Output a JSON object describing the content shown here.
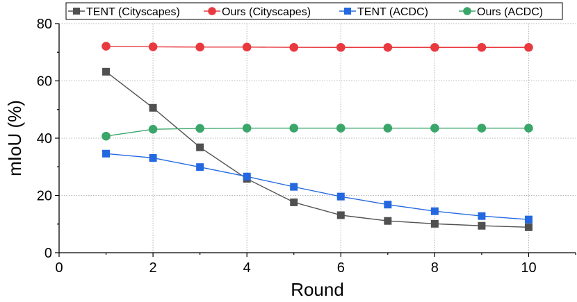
{
  "chart_data": {
    "type": "line",
    "xlabel": "Round",
    "ylabel": "mIoU (%)",
    "xlim": [
      0,
      11
    ],
    "ylim": [
      0,
      80
    ],
    "x_ticks": [
      0,
      2,
      4,
      6,
      8,
      10
    ],
    "y_ticks": [
      0,
      20,
      40,
      60,
      80
    ],
    "grid": true,
    "legend_position": "top",
    "x": [
      1,
      2,
      3,
      4,
      5,
      6,
      7,
      8,
      9,
      10
    ],
    "series": [
      {
        "name": "TENT (Cityscapes)",
        "color": "#505050",
        "marker": "square",
        "values": [
          63.2,
          50.6,
          36.8,
          25.8,
          17.6,
          13.1,
          11.1,
          10.1,
          9.4,
          8.9
        ]
      },
      {
        "name": "Ours (Cityscapes)",
        "color": "#e8393f",
        "marker": "circle",
        "values": [
          72.1,
          71.9,
          71.8,
          71.8,
          71.7,
          71.7,
          71.7,
          71.7,
          71.7,
          71.7
        ]
      },
      {
        "name": "TENT (ACDC)",
        "color": "#2468e0",
        "marker": "square",
        "values": [
          34.6,
          33.1,
          29.9,
          26.6,
          23.0,
          19.6,
          16.8,
          14.5,
          12.8,
          11.6
        ]
      },
      {
        "name": "Ours (ACDC)",
        "color": "#3aa66a",
        "marker": "circle",
        "values": [
          40.7,
          43.1,
          43.4,
          43.5,
          43.5,
          43.5,
          43.5,
          43.5,
          43.5,
          43.5
        ]
      }
    ]
  }
}
